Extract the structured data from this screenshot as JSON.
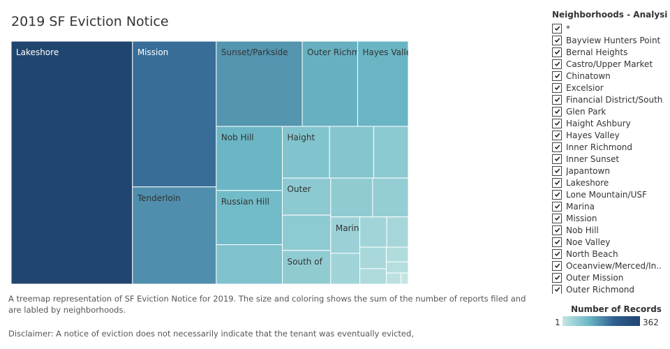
{
  "title": "2019 SF Eviction Notice",
  "caption": "A treemap representation of SF Eviction Notice for 2019.  The size and coloring shows the sum of the number of reports filed and are labled by neighborhoods.",
  "disclaimer": "Disclaimer: A notice of eviction does not necessarily indicate that the tenant was eventually evicted,",
  "filter": {
    "title": "Neighborhoods - Analysis ..",
    "items": [
      "*",
      "Bayview Hunters Point",
      "Bernal Heights",
      "Castro/Upper Market",
      "Chinatown",
      "Excelsior",
      "Financial District/South..",
      "Glen Park",
      "Haight Ashbury",
      "Hayes Valley",
      "Inner Richmond",
      "Inner Sunset",
      "Japantown",
      "Lakeshore",
      "Lone Mountain/USF",
      "Marina",
      "Mission",
      "Nob Hill",
      "Noe Valley",
      "North Beach",
      "Oceanview/Merced/In..",
      "Outer Mission",
      "Outer Richmond"
    ]
  },
  "legend": {
    "title": "Number of Records",
    "min": "1",
    "max": "362",
    "colors": [
      "#c4e6e3",
      "#6cb8c6",
      "#2e5f8e",
      "#20456f"
    ]
  },
  "chart_data": {
    "type": "treemap",
    "title": "2019 SF Eviction Notice",
    "measure": "Number of Records",
    "color_range": [
      1,
      362
    ],
    "items": [
      {
        "label": "Lakeshore",
        "value": 362
      },
      {
        "label": "Mission",
        "value": 150
      },
      {
        "label": "Tenderloin",
        "value": 100
      },
      {
        "label": "Sunset/Parkside",
        "value": 90
      },
      {
        "label": "Outer Richmond",
        "value": 58
      },
      {
        "label": "Hayes Valley",
        "value": 53
      },
      {
        "label": "Nob Hill",
        "value": 52
      },
      {
        "label": "Russian Hill",
        "value": 44
      },
      {
        "label": "",
        "value": 32
      },
      {
        "label": "Haight",
        "value": 30
      },
      {
        "label": "",
        "value": 28
      },
      {
        "label": "",
        "value": 22
      },
      {
        "label": "Outer",
        "value": 22
      },
      {
        "label": "",
        "value": 21
      },
      {
        "label": "South of",
        "value": 20
      },
      {
        "label": "",
        "value": 20
      },
      {
        "label": "",
        "value": 17
      },
      {
        "label": "Marina",
        "value": 13
      },
      {
        "label": "",
        "value": 11
      },
      {
        "label": "",
        "value": 10
      },
      {
        "label": "",
        "value": 8
      },
      {
        "label": "",
        "value": 7
      },
      {
        "label": "",
        "value": 5
      },
      {
        "label": "",
        "value": 4
      },
      {
        "label": "",
        "value": 3
      },
      {
        "label": "",
        "value": 2
      },
      {
        "label": "",
        "value": 1
      }
    ]
  }
}
